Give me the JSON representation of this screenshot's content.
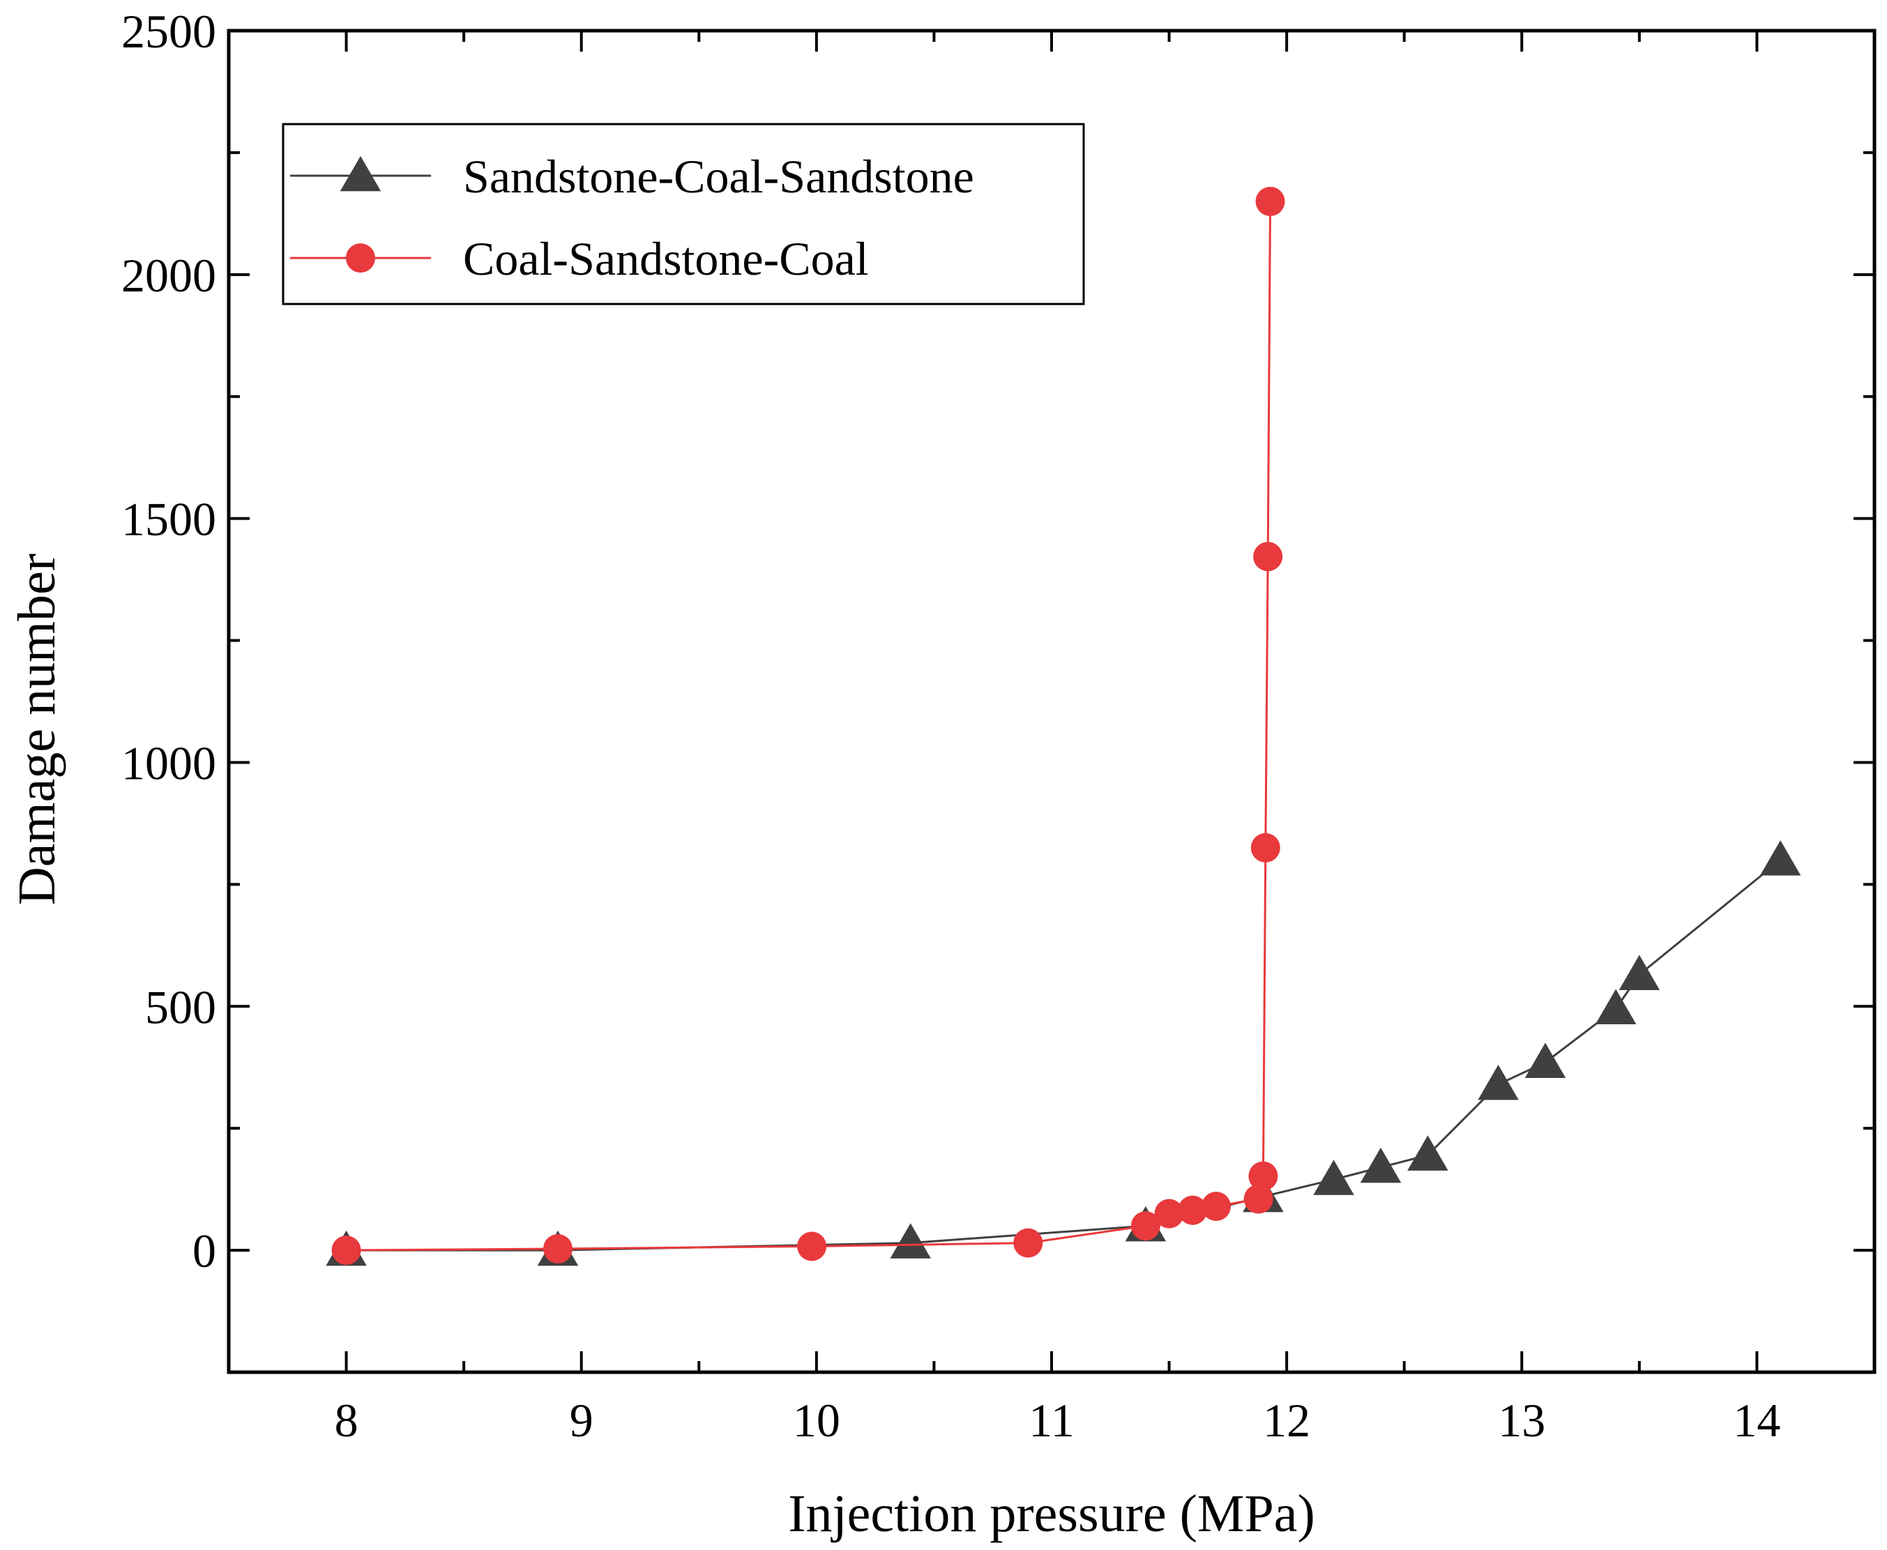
{
  "chart_data": {
    "type": "line",
    "title": "",
    "xlabel": "Injection pressure (MPa)",
    "ylabel": "Damage number",
    "xlim": [
      7.5,
      14.5
    ],
    "ylim": [
      -250,
      2500
    ],
    "xticks": [
      8,
      9,
      10,
      11,
      12,
      13,
      14
    ],
    "yticks": [
      0,
      500,
      1000,
      1500,
      2000,
      2500
    ],
    "grid": false,
    "legend_position": "top-left",
    "series": [
      {
        "name": "Sandstone-Coal-Sandstone",
        "marker": "triangle",
        "color": "#404040",
        "x": [
          8.0,
          8.9,
          10.4,
          11.4,
          11.9,
          12.2,
          12.4,
          12.6,
          12.9,
          13.1,
          13.4,
          13.5,
          14.1
        ],
        "y": [
          0,
          0,
          15,
          50,
          110,
          145,
          170,
          195,
          340,
          385,
          495,
          565,
          800
        ]
      },
      {
        "name": "Coal-Sandstone-Coal",
        "marker": "circle",
        "color": "#e8393c",
        "x": [
          8.0,
          8.9,
          9.98,
          10.9,
          11.4,
          11.5,
          11.6,
          11.7,
          11.88,
          11.9,
          11.91,
          11.92,
          11.93
        ],
        "y": [
          0,
          3,
          8,
          15,
          50,
          75,
          82,
          90,
          105,
          152,
          825,
          1422,
          2150
        ]
      }
    ]
  }
}
